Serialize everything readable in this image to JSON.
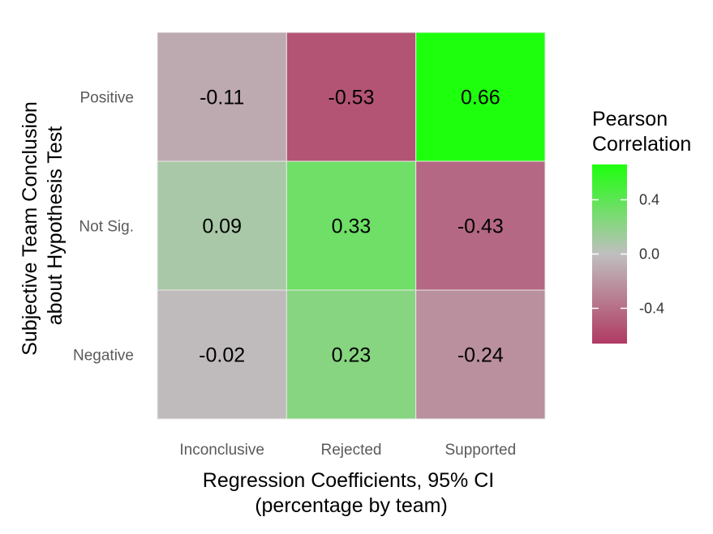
{
  "chart_data": {
    "type": "heatmap",
    "title": "",
    "x_categories": [
      "Inconclusive",
      "Rejected",
      "Supported"
    ],
    "y_categories": [
      "Positive",
      "Not Sig.",
      "Negative"
    ],
    "values": [
      [
        -0.11,
        -0.53,
        0.66
      ],
      [
        0.09,
        0.33,
        -0.43
      ],
      [
        -0.02,
        0.23,
        -0.24
      ]
    ],
    "labels": [
      [
        "-0.11",
        "-0.53",
        "0.66"
      ],
      [
        "0.09",
        "0.33",
        "-0.43"
      ],
      [
        "-0.02",
        "0.23",
        "-0.24"
      ]
    ],
    "xlabel_lines": [
      "Regression Coefficients, 95% CI",
      "(percentage by team)"
    ],
    "ylabel_lines": [
      "Subjective Team Conclusion",
      "about Hypothesis Test"
    ],
    "legend": {
      "title_lines": [
        "Pearson",
        "Correlation"
      ],
      "ticks": [
        0.4,
        0.0,
        -0.4
      ],
      "tick_labels": [
        "0.4",
        "0.0",
        "-0.4"
      ],
      "range": [
        -0.66,
        0.66
      ],
      "placement": "right"
    },
    "colors": {
      "low": "#b03a63",
      "mid": "#bfbfbf",
      "high": "#1eff0e"
    },
    "grid": false
  }
}
